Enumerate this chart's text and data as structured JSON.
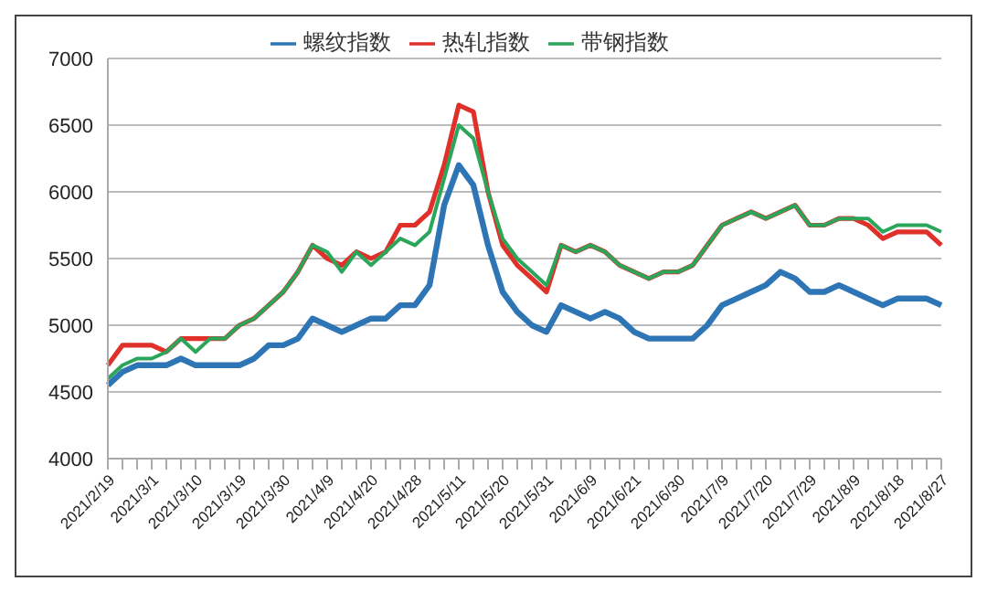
{
  "chart_data": {
    "type": "line",
    "categories": [
      "2021/2/19",
      null,
      null,
      "2021/3/1",
      null,
      null,
      "2021/3/10",
      null,
      null,
      "2021/3/19",
      null,
      null,
      "2021/3/30",
      null,
      null,
      "2021/4/9",
      null,
      null,
      "2021/4/20",
      null,
      null,
      "2021/4/28",
      null,
      null,
      "2021/5/11",
      null,
      null,
      "2021/5/20",
      null,
      null,
      "2021/5/31",
      null,
      null,
      "2021/6/9",
      null,
      null,
      "2021/6/21",
      null,
      null,
      "2021/6/30",
      null,
      null,
      "2021/7/9",
      null,
      null,
      "2021/7/20",
      null,
      null,
      "2021/7/29",
      null,
      null,
      "2021/8/9",
      null,
      null,
      "2021/8/18",
      null,
      null,
      "2021/8/27"
    ],
    "series": [
      {
        "name": "螺纹指数",
        "color": "#2e75b6",
        "values": [
          4550,
          4650,
          4700,
          4700,
          4700,
          4750,
          4700,
          4700,
          4700,
          4700,
          4750,
          4850,
          4850,
          4900,
          5050,
          5000,
          4950,
          5000,
          5050,
          5050,
          5150,
          5150,
          5300,
          5900,
          6200,
          6050,
          5600,
          5250,
          5100,
          5000,
          4950,
          5150,
          5100,
          5050,
          5100,
          5050,
          4950,
          4900,
          4900,
          4900,
          4900,
          5000,
          5150,
          5200,
          5250,
          5300,
          5400,
          5350,
          5250,
          5250,
          5300,
          5250,
          5200,
          5150,
          5200,
          5200,
          5200,
          5150
        ]
      },
      {
        "name": "热轧指数",
        "color": "#e0302a",
        "values": [
          4700,
          4850,
          4850,
          4850,
          4800,
          4900,
          4900,
          4900,
          4900,
          5000,
          5050,
          5150,
          5250,
          5400,
          5600,
          5500,
          5450,
          5550,
          5500,
          5550,
          5750,
          5750,
          5850,
          6200,
          6650,
          6600,
          6000,
          5600,
          5450,
          5350,
          5250,
          5600,
          5550,
          5600,
          5550,
          5450,
          5400,
          5350,
          5400,
          5400,
          5450,
          5600,
          5750,
          5800,
          5850,
          5800,
          5850,
          5900,
          5750,
          5750,
          5800,
          5800,
          5750,
          5650,
          5700,
          5700,
          5700,
          5600
        ]
      },
      {
        "name": "带钢指数",
        "color": "#2aa55a",
        "values": [
          4600,
          4700,
          4750,
          4750,
          4800,
          4900,
          4800,
          4900,
          4900,
          5000,
          5050,
          5150,
          5250,
          5400,
          5600,
          5550,
          5400,
          5550,
          5450,
          5550,
          5650,
          5600,
          5700,
          6100,
          6500,
          6400,
          6000,
          5650,
          5500,
          5400,
          5300,
          5600,
          5550,
          5600,
          5550,
          5450,
          5400,
          5350,
          5400,
          5400,
          5450,
          5600,
          5750,
          5800,
          5850,
          5800,
          5850,
          5900,
          5750,
          5750,
          5800,
          5800,
          5800,
          5700,
          5750,
          5750,
          5750,
          5700
        ]
      }
    ],
    "ylim": [
      4000,
      7000
    ],
    "yticks": [
      4000,
      4500,
      5000,
      5500,
      6000,
      6500,
      7000
    ],
    "grid": "y",
    "legend": "top",
    "marker": "none",
    "line_style": "solid"
  }
}
